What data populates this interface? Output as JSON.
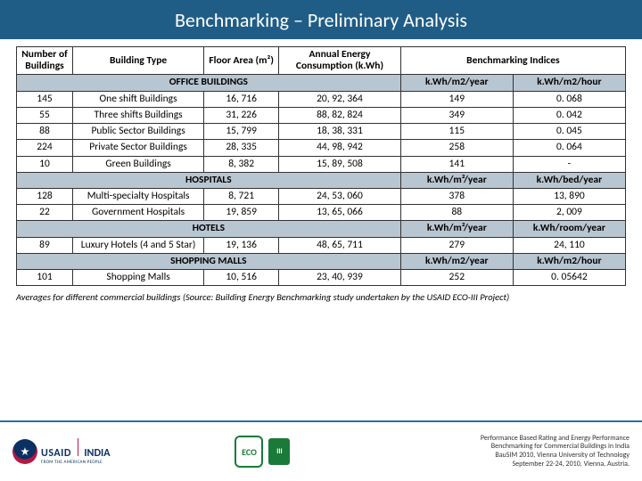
{
  "title": "Benchmarking – Preliminary Analysis",
  "columns": {
    "num": "Number of Buildings",
    "type": "Building Type",
    "floor": "Floor Area (m²)",
    "annual": "Annual Energy Consumption (k.Wh)",
    "indices": "Benchmarking Indices"
  },
  "sections": {
    "office": {
      "title": "OFFICE BUILDINGS",
      "idx1": "k.Wh/m2/year",
      "idx2": "k.Wh/m2/hour"
    },
    "hospital": {
      "title": "HOSPITALS",
      "idx1": "k.Wh/m²/year",
      "idx2": "k.Wh/bed/year"
    },
    "hotel": {
      "title": "HOTELS",
      "idx1": "k.Wh/m²/year",
      "idx2": "k.Wh/room/year"
    },
    "mall": {
      "title": "SHOPPING MALLS",
      "idx1": "k.Wh/m2/year",
      "idx2": "k.Wh/m2/hour"
    }
  },
  "rows": {
    "o1": {
      "num": "145",
      "type": "One shift Buildings",
      "floor": "16, 716",
      "annual": "20, 92, 364",
      "i1": "149",
      "i2": "0. 068"
    },
    "o2": {
      "num": "55",
      "type": "Three shifts Buildings",
      "floor": "31, 226",
      "annual": "88, 82, 824",
      "i1": "349",
      "i2": "0. 042"
    },
    "o3": {
      "num": "88",
      "type": "Public Sector Buildings",
      "floor": "15, 799",
      "annual": "18, 38, 331",
      "i1": "115",
      "i2": "0. 045"
    },
    "o4": {
      "num": "224",
      "type": "Private Sector Buildings",
      "floor": "28, 335",
      "annual": "44, 98, 942",
      "i1": "258",
      "i2": "0. 064"
    },
    "o5": {
      "num": "10",
      "type": "Green Buildings",
      "floor": "8, 382",
      "annual": "15, 89, 508",
      "i1": "141",
      "i2": "-"
    },
    "h1": {
      "num": "128",
      "type": "Multi-specialty Hospitals",
      "floor": "8, 721",
      "annual": "24, 53, 060",
      "i1": "378",
      "i2": "13, 890"
    },
    "h2": {
      "num": "22",
      "type": "Government Hospitals",
      "floor": "19, 859",
      "annual": "13, 65, 066",
      "i1": "88",
      "i2": "2, 009"
    },
    "t1": {
      "num": "89",
      "type": "Luxury Hotels (4 and 5 Star)",
      "floor": "19, 136",
      "annual": "48, 65, 711",
      "i1": "279",
      "i2": "24, 110"
    },
    "m1": {
      "num": "101",
      "type": "Shopping Malls",
      "floor": "10, 516",
      "annual": "23, 40, 939",
      "i1": "252",
      "i2": "0. 05642"
    }
  },
  "caption": "Averages for different commercial buildings (Source: Building Energy Benchmarking study undertaken by the USAID ECO-III Project)",
  "logos": {
    "usaid": {
      "main": "USAID",
      "country": "INDIA",
      "sub": "FROM THE AMERICAN PEOPLE"
    },
    "eco": {
      "badge": "ECO",
      "iii": "III"
    }
  },
  "footer": {
    "l1": "Performance Based Rating and Energy Performance",
    "l2": "Benchmarking for Commercial Buildings in India",
    "l3": "BauSIM 2010, Vienna University of Technology",
    "l4": "September 22-24, 2010, Vienna, Austria."
  },
  "style": {
    "title_bg": "#205d86",
    "title_color": "#ffffff",
    "section_bg": "#b8c6d1",
    "border_color": "#333333",
    "footer_rule": "#2a6fa5",
    "usaid_blue": "#0a3161",
    "usaid_red": "#b31942",
    "eco_green": "#1a7a3a"
  }
}
